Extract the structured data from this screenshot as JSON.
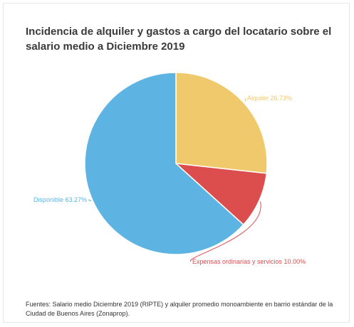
{
  "chart_data": {
    "type": "pie",
    "title": "Incidencia de alquiler y gastos a cargo del locatario sobre el salario medio a Diciembre 2019",
    "slices": [
      {
        "label": "Alquiler",
        "value": 26.73,
        "display": "Alquiler 26.73%",
        "color": "#efc96b"
      },
      {
        "label": "Expensas ordinarias y servicios",
        "value": 10.0,
        "display": "Expensas ordinarias y servicios 10.00%",
        "color": "#dc4d4e"
      },
      {
        "label": "Disponible",
        "value": 63.27,
        "display": "Disponible 63.27%",
        "color": "#5db4e3"
      }
    ]
  },
  "footnote": "Fuentes: Salario medio Diciembre 2019 (RIPTE) y alquiler promedio monoambiente en barrio estándar de la Ciudad de Buenos Aires (Zonaprop)."
}
